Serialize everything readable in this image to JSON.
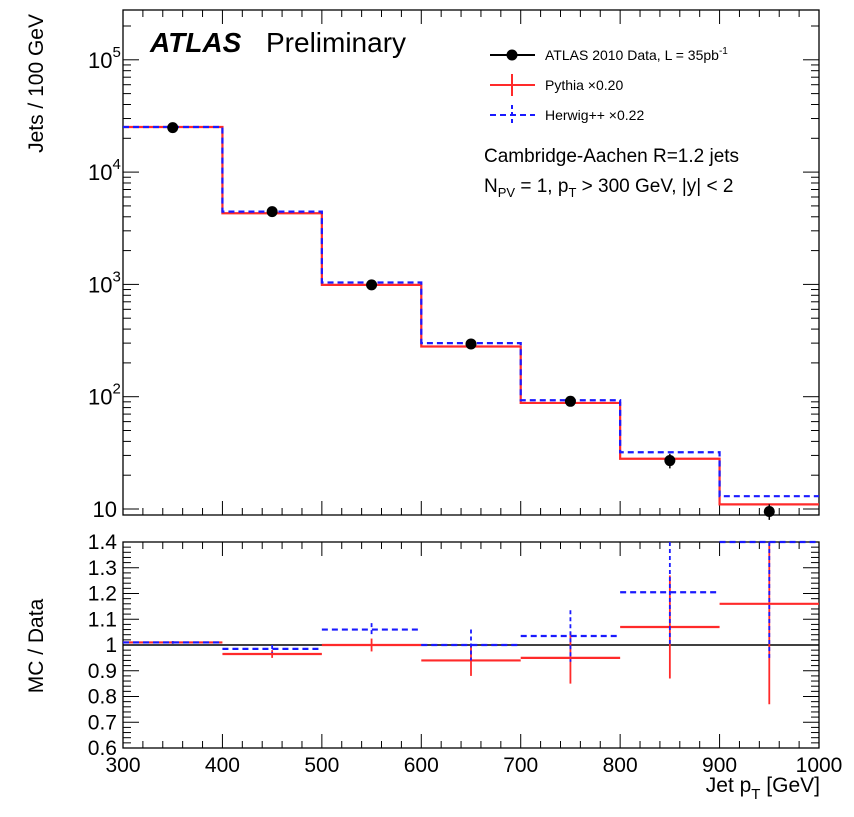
{
  "labels": {
    "atlas": "ATLAS",
    "preliminary": "Preliminary",
    "jet_info": "Cambridge-Aachen R=1.2 jets",
    "npv_N": "N",
    "npv_sub": "PV",
    "npv_rest1": " = 1, p",
    "npv_T": "T",
    "npv_rest2": " > 300 GeV, |y| < 2",
    "xlabel_main": "Jet p",
    "xlabel_sub": "T",
    "xlabel_unit": " [GeV]"
  },
  "chart_data": [
    {
      "type": "line",
      "panel": "main",
      "ylabel": "Jets / 100 GeV",
      "xlim": [
        300,
        1000
      ],
      "ylim": [
        10,
        200000
      ],
      "yscale": "log",
      "ytick_labels": [
        {
          "value": 10,
          "base": "10",
          "exp": ""
        },
        {
          "value": 100,
          "base": "10",
          "exp": "2"
        },
        {
          "value": 1000,
          "base": "10",
          "exp": "3"
        },
        {
          "value": 10000,
          "base": "10",
          "exp": "4"
        },
        {
          "value": 100000,
          "base": "10",
          "exp": "5"
        }
      ],
      "bin_edges": [
        300,
        400,
        500,
        600,
        700,
        800,
        900,
        1000
      ],
      "legend_position": "top-right",
      "series": [
        {
          "name": "Pythia ×0.20",
          "kind": "hist",
          "color": "#ff2a2a",
          "values": [
            25200,
            4300,
            990,
            280,
            88,
            28,
            11
          ],
          "err_up": [
            0,
            0,
            0,
            0,
            0,
            0,
            0
          ],
          "err_dn": [
            0,
            0,
            0,
            0,
            0,
            0,
            0
          ]
        },
        {
          "name": "Herwig++ ×0.22",
          "kind": "hist-dashed",
          "color": "#1a1aff",
          "values": [
            25200,
            4450,
            1040,
            300,
            93,
            32,
            13
          ],
          "err_up": [
            0,
            0,
            0,
            0,
            0,
            0,
            0
          ],
          "err_dn": [
            0,
            0,
            0,
            0,
            0,
            0,
            0
          ]
        },
        {
          "name": "ATLAS 2010 Data, L = 35pb",
          "name_sup": "-1",
          "kind": "points",
          "color": "#000000",
          "x": [
            350,
            450,
            550,
            650,
            750,
            850,
            950
          ],
          "values": [
            24900,
            4450,
            990,
            295,
            91,
            27,
            9.5
          ],
          "err_up": [
            0,
            0,
            0,
            0,
            0,
            4,
            1.5
          ],
          "err_dn": [
            0,
            0,
            0,
            0,
            0,
            4,
            1.5
          ]
        }
      ]
    },
    {
      "type": "line",
      "panel": "ratio",
      "ylabel": "MC / Data",
      "xlabel": "Jet pT [GeV]",
      "xlim": [
        300,
        1000
      ],
      "ylim": [
        0.6,
        1.4
      ],
      "xticks": [
        300,
        400,
        500,
        600,
        700,
        800,
        900,
        1000
      ],
      "yticks": [
        0.6,
        0.7,
        0.8,
        0.9,
        1,
        1.1,
        1.2,
        1.3,
        1.4
      ],
      "bin_edges": [
        300,
        400,
        500,
        600,
        700,
        800,
        900,
        1000
      ],
      "reference_line": 1.0,
      "series": [
        {
          "name": "Pythia ×0.20",
          "color": "#ff2a2a",
          "dashed": false,
          "values": [
            1.01,
            0.965,
            1.0,
            0.94,
            0.95,
            1.07,
            1.16
          ],
          "err": [
            0.005,
            0.015,
            0.025,
            0.06,
            0.1,
            0.2,
            0.39
          ]
        },
        {
          "name": "Herwig++ ×0.22",
          "color": "#1a1aff",
          "dashed": true,
          "values": [
            1.01,
            0.985,
            1.06,
            1.0,
            1.035,
            1.205,
            1.4
          ],
          "err": [
            0.005,
            0.015,
            0.025,
            0.06,
            0.1,
            0.2,
            0.45
          ]
        }
      ]
    }
  ]
}
